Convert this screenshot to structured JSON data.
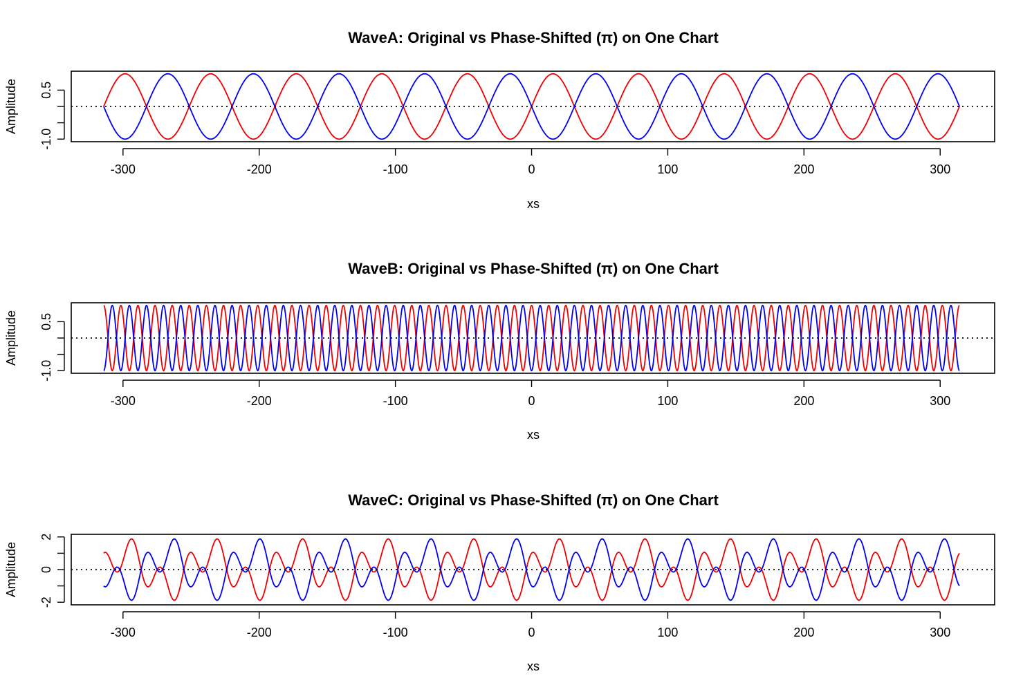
{
  "chart_data": [
    {
      "type": "line",
      "title": "WaveA: Original vs Phase-Shifted (π) on One Chart",
      "xlabel": "xs",
      "ylabel": "Amplitude",
      "xlim": [
        -314.16,
        314.16
      ],
      "ylim": [
        -1,
        1
      ],
      "x_ticks": [
        -300,
        -200,
        -100,
        0,
        100,
        200,
        300
      ],
      "x_tick_labels": [
        "-300",
        "-200",
        "-100",
        "0",
        "100",
        "200",
        "300"
      ],
      "y_ticks": [
        -1.0,
        -0.5,
        0.0,
        0.5
      ],
      "y_tick_labels": [
        "-1.0",
        "",
        "",
        "0.5"
      ],
      "reference_line": {
        "y": 0,
        "style": "dotted",
        "color": "#000000"
      },
      "grid": false,
      "legend": "none",
      "x_range": [
        -314.16,
        314.16
      ],
      "series": [
        {
          "color": "#ee0000",
          "function": "y = sin(0.1 x)"
        },
        {
          "color": "#0000ee",
          "function": "y = sin(0.1 x + π)"
        }
      ]
    },
    {
      "type": "line",
      "title": "WaveB: Original vs Phase-Shifted (π) on One Chart",
      "xlabel": "xs",
      "ylabel": "Amplitude",
      "xlim": [
        -314.16,
        314.16
      ],
      "ylim": [
        -1,
        1
      ],
      "x_ticks": [
        -300,
        -200,
        -100,
        0,
        100,
        200,
        300
      ],
      "x_tick_labels": [
        "-300",
        "-200",
        "-100",
        "0",
        "100",
        "200",
        "300"
      ],
      "y_ticks": [
        -1.0,
        -0.5,
        0.0,
        0.5
      ],
      "y_tick_labels": [
        "-1.0",
        "",
        "",
        "0.5"
      ],
      "reference_line": {
        "y": 0,
        "style": "dotted",
        "color": "#000000"
      },
      "grid": false,
      "legend": "none",
      "x_range": [
        -314.16,
        314.16
      ],
      "series": [
        {
          "color": "#ee0000",
          "function": "y = cos(0.5 x)"
        },
        {
          "color": "#0000ee",
          "function": "y = cos(0.5 x + π)"
        }
      ]
    },
    {
      "type": "line",
      "title": "WaveC: Original vs Phase-Shifted (π) on One Chart",
      "xlabel": "xs",
      "ylabel": "Amplitude",
      "xlim": [
        -314.16,
        314.16
      ],
      "ylim": [
        -2,
        2
      ],
      "x_ticks": [
        -300,
        -200,
        -100,
        0,
        100,
        200,
        300
      ],
      "x_tick_labels": [
        "-300",
        "-200",
        "-100",
        "0",
        "100",
        "200",
        "300"
      ],
      "y_ticks": [
        -2,
        -1,
        0,
        1,
        2
      ],
      "y_tick_labels": [
        "-2",
        "",
        "0",
        "",
        "2"
      ],
      "reference_line": {
        "y": 0,
        "style": "dotted",
        "color": "#000000"
      },
      "grid": false,
      "legend": "none",
      "x_range": [
        -314.16,
        314.16
      ],
      "series": [
        {
          "color": "#ee0000",
          "function": "y = sin(0.1 x) + cos(0.3 x)"
        },
        {
          "color": "#0000ee",
          "function": "y = -(sin(0.1 x) + cos(0.3 x))"
        }
      ]
    }
  ]
}
